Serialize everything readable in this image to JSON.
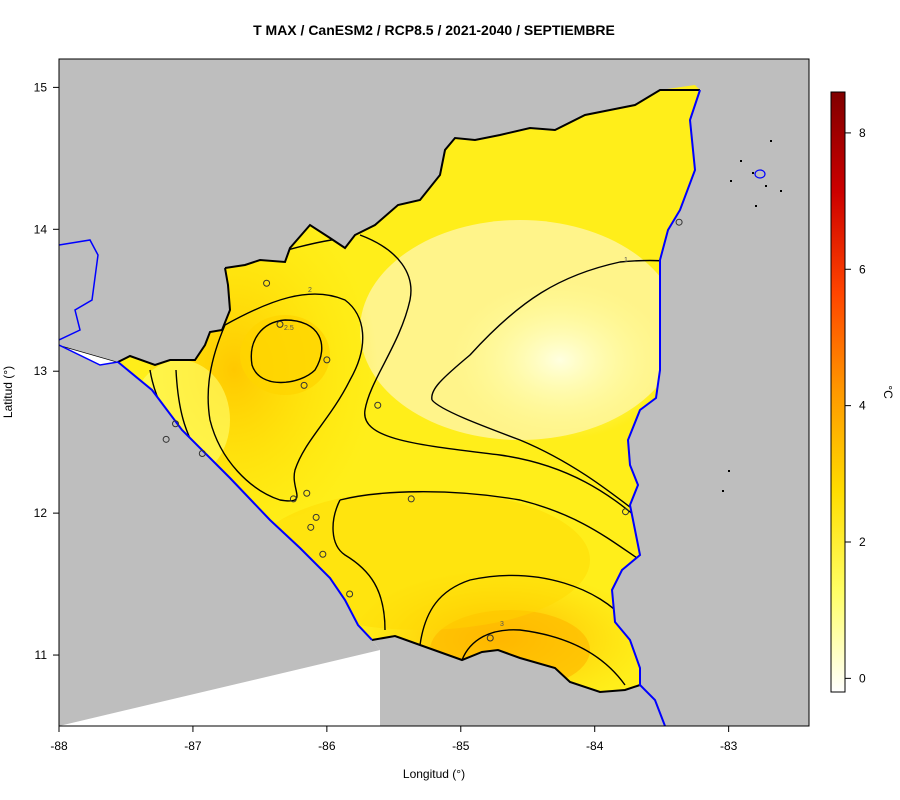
{
  "map": {
    "title": "T MAX / CanESM2 / RCP8.5 / 2021-2040 / SEPTIEMBRE",
    "xlabel": "Longitud (°)",
    "ylabel": "Latitud (°)",
    "x_ticks": [
      "-88",
      "-87",
      "-86",
      "-85",
      "-84",
      "-83"
    ],
    "y_ticks": [
      "11",
      "12",
      "13",
      "14",
      "15"
    ],
    "colorbar": {
      "label": "°C",
      "ticks": [
        "0",
        "2",
        "4",
        "6",
        "8"
      ],
      "range": [
        -0.2,
        8.6
      ],
      "colors": [
        "#ffffff",
        "#ffff66",
        "#ffdd00",
        "#ff9900",
        "#ff4400",
        "#cc0000",
        "#800000"
      ]
    },
    "contour_labels": [
      "1",
      "2",
      "2.5",
      "3"
    ],
    "stations": [
      {
        "lon": -86.45,
        "lat": 13.62
      },
      {
        "lon": -86.35,
        "lat": 13.33
      },
      {
        "lon": -86.0,
        "lat": 13.08
      },
      {
        "lon": -86.17,
        "lat": 12.9
      },
      {
        "lon": -87.13,
        "lat": 12.63
      },
      {
        "lon": -87.2,
        "lat": 12.52
      },
      {
        "lon": -86.93,
        "lat": 12.42
      },
      {
        "lon": -85.62,
        "lat": 12.76
      },
      {
        "lon": -85.37,
        "lat": 12.1
      },
      {
        "lon": -86.25,
        "lat": 12.1
      },
      {
        "lon": -86.15,
        "lat": 12.14
      },
      {
        "lon": -86.08,
        "lat": 11.97
      },
      {
        "lon": -86.12,
        "lat": 11.9
      },
      {
        "lon": -86.03,
        "lat": 11.71
      },
      {
        "lon": -85.83,
        "lat": 11.43
      },
      {
        "lon": -84.78,
        "lat": 11.12
      },
      {
        "lon": -83.77,
        "lat": 12.01
      },
      {
        "lon": -83.37,
        "lat": 14.05
      }
    ],
    "land_color": "#bebebe",
    "coast_color": "#0000ff"
  }
}
